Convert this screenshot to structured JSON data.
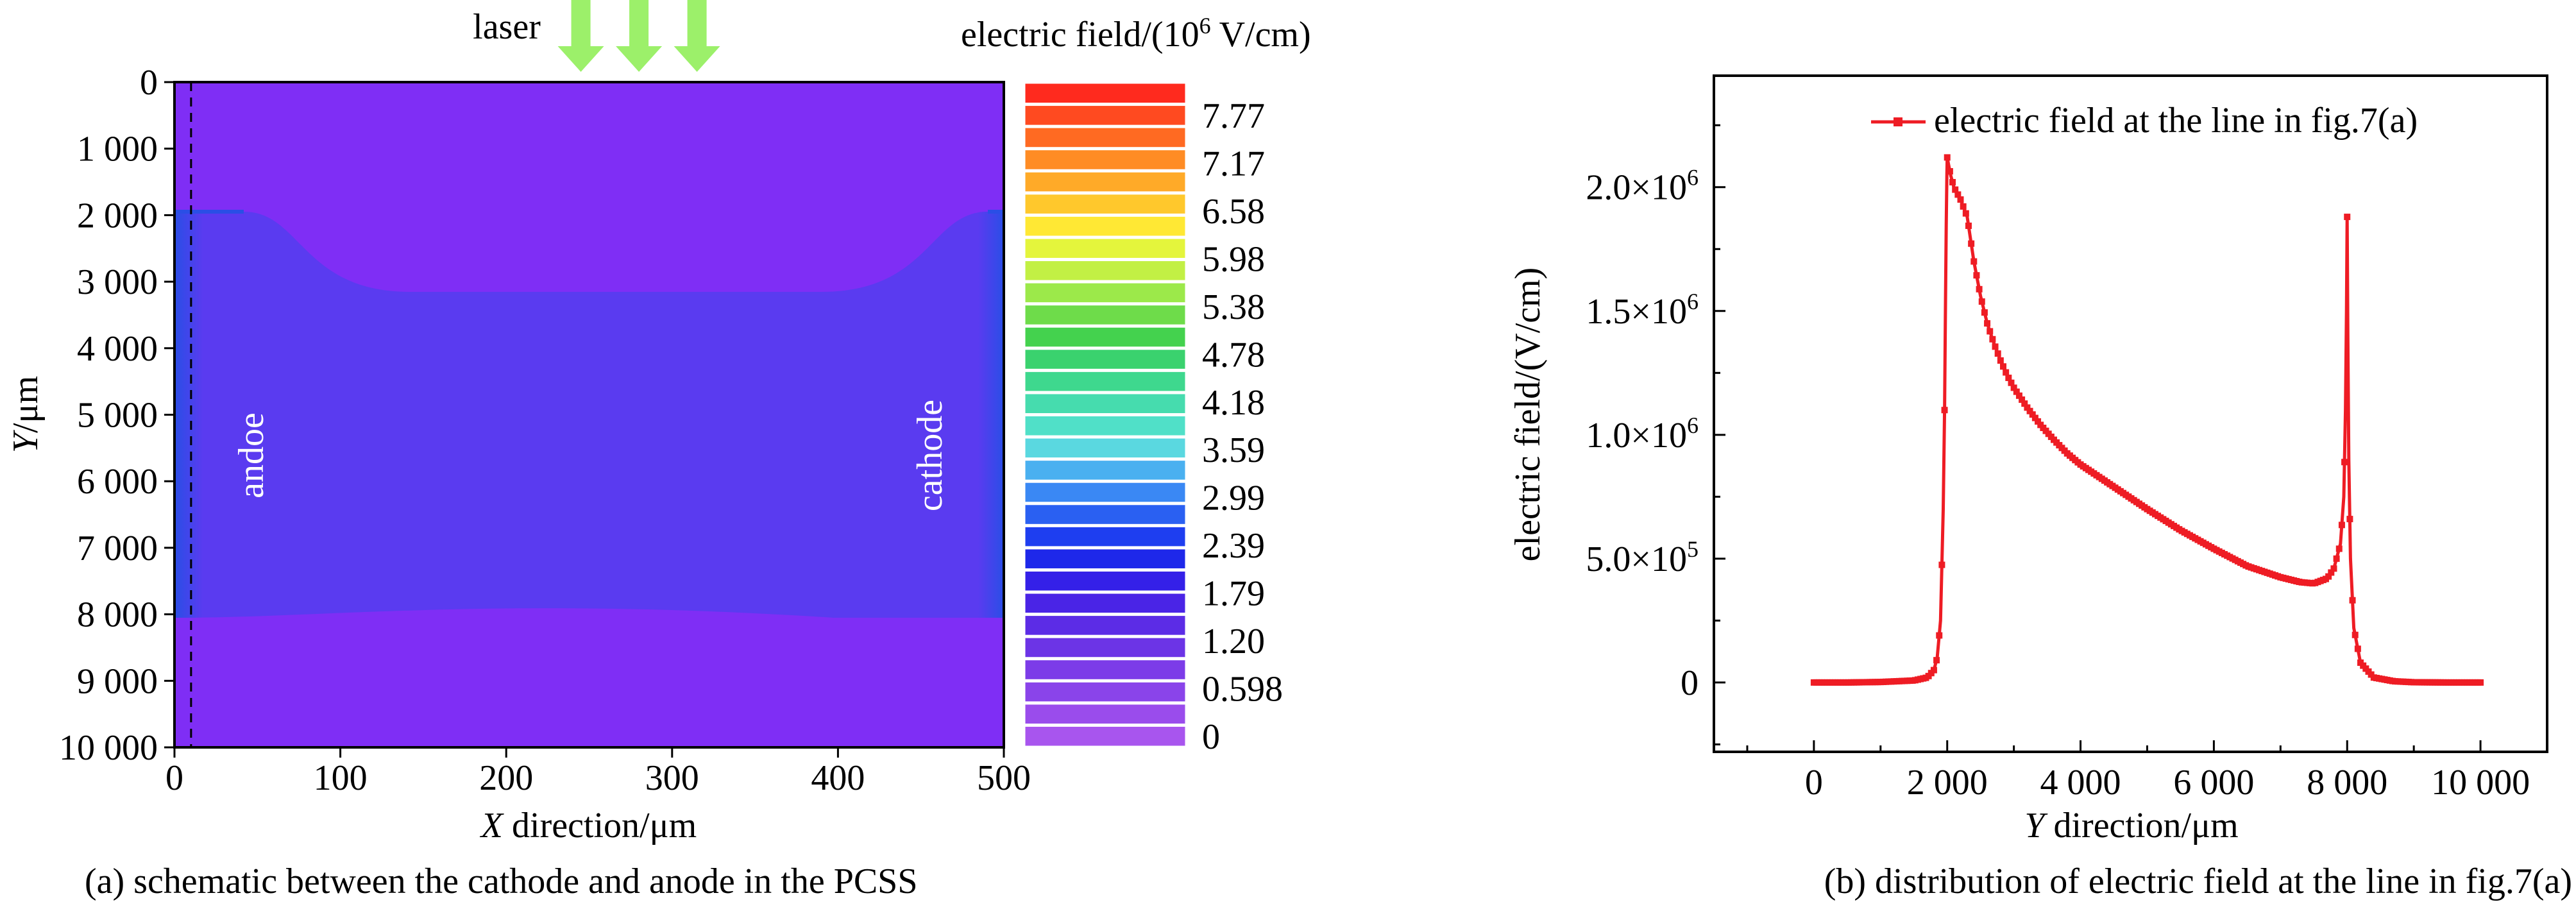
{
  "chart_data": [
    {
      "type": "heatmap",
      "xlabel_italic": "X",
      "xlabel_rest": " direction/μm",
      "ylabel_italic": "Y",
      "ylabel_rest": "/μm",
      "x_ticks": [
        "0",
        "100",
        "200",
        "300",
        "400",
        "500"
      ],
      "x_tick_values": [
        0,
        100,
        200,
        300,
        400,
        500
      ],
      "y_ticks": [
        "0",
        "1 000",
        "2 000",
        "3 000",
        "4 000",
        "5 000",
        "6 000",
        "7 000",
        "8 000",
        "9 000",
        "10 000"
      ],
      "y_tick_values": [
        0,
        1000,
        2000,
        3000,
        4000,
        5000,
        6000,
        7000,
        8000,
        9000,
        10000
      ],
      "xlim": [
        0,
        500
      ],
      "ylim": [
        0,
        10000
      ],
      "y_inverted": true,
      "laser_label": "laser",
      "laser_arrows_x": [
        245,
        280,
        315
      ],
      "dashed_line_x": 10,
      "anode_label": "andoe",
      "cathode_label": "cathode",
      "colorbar_title_pre": "electric field/(10",
      "colorbar_title_exp": "6",
      "colorbar_title_post": " V/cm)",
      "colorbar_labels": [
        "7.77",
        "7.17",
        "6.58",
        "5.98",
        "5.38",
        "4.78",
        "4.18",
        "3.59",
        "2.99",
        "2.39",
        "1.79",
        "1.20",
        "0.598",
        "0"
      ],
      "colorbar_colors": [
        "#ff2a1e",
        "#ff4a20",
        "#ff6a22",
        "#ff8c24",
        "#ffaa28",
        "#ffc82c",
        "#ffe834",
        "#e4f53c",
        "#c2f044",
        "#9ce94a",
        "#6edc4a",
        "#44d24e",
        "#3ad26e",
        "#3ed88e",
        "#46dcae",
        "#50e0c8",
        "#5ad8e0",
        "#4ab0f0",
        "#3a88f4",
        "#2a60f2",
        "#1e3ef0",
        "#1e28ea",
        "#3420e8",
        "#4a24e6",
        "#5c2ce6",
        "#6c34e6",
        "#7c3ce8",
        "#8a44ea",
        "#9a4cec",
        "#a855ee"
      ],
      "field_colors": {
        "low": "#7f2ef5",
        "mid": "#5a3bf0",
        "edge": "#2a4ee6"
      },
      "caption": "(a)  schematic between the cathode and anode in the PCSS"
    },
    {
      "type": "line",
      "xlabel_italic": "Y",
      "xlabel_rest": " direction/μm",
      "ylabel": "electric field/(V/cm)",
      "x_ticks": [
        "0",
        "2 000",
        "4 000",
        "6 000",
        "8 000",
        "10 000"
      ],
      "x_tick_values": [
        0,
        2000,
        4000,
        6000,
        8000,
        10000
      ],
      "y_tick_labels": [
        {
          "value": 0,
          "mant": "0",
          "exp": ""
        },
        {
          "value": 500000,
          "mant": "5.0×10",
          "exp": "5"
        },
        {
          "value": 1000000,
          "mant": "1.0×10",
          "exp": "6"
        },
        {
          "value": 1500000,
          "mant": "1.5×10",
          "exp": "6"
        },
        {
          "value": 2000000,
          "mant": "2.0×10",
          "exp": "6"
        }
      ],
      "xlim": [
        -1500,
        11000
      ],
      "ylim": [
        -280000,
        2450000
      ],
      "series": [
        {
          "name": "electric field at the line in fig.7(a)",
          "color": "#ee1c24",
          "x": [
            0,
            500,
            1000,
            1500,
            1700,
            1800,
            1850,
            1900,
            1940,
            1960,
            1975,
            1985,
            1995,
            2000,
            2050,
            2100,
            2200,
            2300,
            2400,
            2500,
            2600,
            2700,
            2800,
            2900,
            3000,
            3200,
            3400,
            3600,
            3800,
            4000,
            4500,
            5000,
            5500,
            6000,
            6500,
            7000,
            7300,
            7500,
            7700,
            7800,
            7900,
            7950,
            7975,
            7990,
            8000,
            8010,
            8025,
            8050,
            8100,
            8200,
            8400,
            8700,
            9000,
            9500,
            10000
          ],
          "values": [
            0,
            0,
            2000,
            8000,
            20000,
            50000,
            100000,
            250000,
            700000,
            1100000,
            1550000,
            1850000,
            2050000,
            2120000,
            2050000,
            2000000,
            1950000,
            1880000,
            1700000,
            1560000,
            1450000,
            1370000,
            1300000,
            1240000,
            1190000,
            1110000,
            1040000,
            980000,
            925000,
            880000,
            790000,
            700000,
            615000,
            540000,
            470000,
            425000,
            405000,
            400000,
            420000,
            460000,
            560000,
            750000,
            1100000,
            1500000,
            1880000,
            1400000,
            900000,
            500000,
            220000,
            80000,
            20000,
            5000,
            1000,
            0,
            0
          ]
        }
      ],
      "caption": "(b) distribution of electric field at the line in fig.7(a)"
    }
  ]
}
